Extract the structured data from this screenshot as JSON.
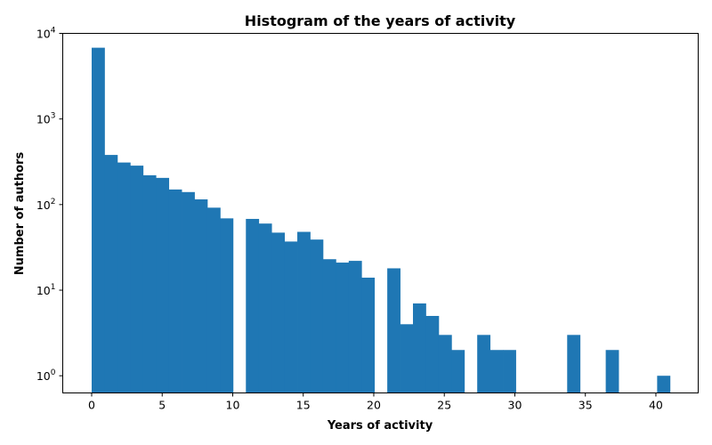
{
  "chart_data": {
    "type": "bar",
    "title": "Histogram of the years of activity",
    "xlabel": "Years of activity",
    "ylabel": "Number of authors",
    "yscale": "log",
    "bin_width": 0.9111,
    "xlim": [
      -2.05,
      43.0
    ],
    "ylim": [
      0.63,
      10000
    ],
    "grid": false,
    "color": "#1f77b4",
    "x_ticks": [
      0,
      5,
      10,
      15,
      20,
      25,
      30,
      35,
      40
    ],
    "x_tick_labels": [
      "0",
      "5",
      "10",
      "15",
      "20",
      "25",
      "30",
      "35",
      "40"
    ],
    "y_ticks": [
      1,
      10,
      100,
      1000,
      10000
    ],
    "y_tick_base": "10",
    "y_tick_exponents": [
      "0",
      "1",
      "2",
      "3",
      "4"
    ],
    "bins": [
      {
        "x0": 0.0,
        "count": 6800
      },
      {
        "x0": 0.911,
        "count": 380
      },
      {
        "x0": 1.822,
        "count": 310
      },
      {
        "x0": 2.733,
        "count": 285
      },
      {
        "x0": 3.644,
        "count": 220
      },
      {
        "x0": 4.556,
        "count": 205
      },
      {
        "x0": 5.467,
        "count": 150
      },
      {
        "x0": 6.378,
        "count": 140
      },
      {
        "x0": 7.289,
        "count": 115
      },
      {
        "x0": 8.2,
        "count": 92
      },
      {
        "x0": 9.111,
        "count": 69
      },
      {
        "x0": 10.933,
        "count": 68
      },
      {
        "x0": 11.844,
        "count": 60
      },
      {
        "x0": 12.756,
        "count": 47
      },
      {
        "x0": 13.667,
        "count": 37
      },
      {
        "x0": 14.578,
        "count": 48
      },
      {
        "x0": 15.489,
        "count": 39
      },
      {
        "x0": 16.4,
        "count": 23
      },
      {
        "x0": 17.311,
        "count": 21
      },
      {
        "x0": 18.222,
        "count": 22
      },
      {
        "x0": 19.133,
        "count": 14
      },
      {
        "x0": 20.956,
        "count": 18
      },
      {
        "x0": 21.867,
        "count": 4
      },
      {
        "x0": 22.778,
        "count": 7
      },
      {
        "x0": 23.689,
        "count": 5
      },
      {
        "x0": 24.6,
        "count": 3
      },
      {
        "x0": 25.511,
        "count": 2
      },
      {
        "x0": 27.333,
        "count": 3
      },
      {
        "x0": 28.244,
        "count": 2
      },
      {
        "x0": 29.156,
        "count": 2
      },
      {
        "x0": 33.711,
        "count": 3
      },
      {
        "x0": 36.444,
        "count": 2
      },
      {
        "x0": 40.089,
        "count": 1
      }
    ]
  }
}
